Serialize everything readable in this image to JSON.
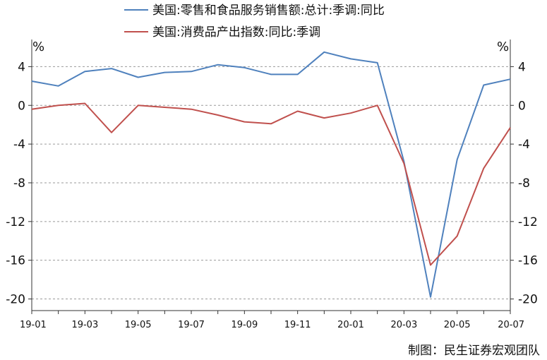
{
  "chart_data": {
    "type": "line",
    "x": [
      "19-01",
      "19-02",
      "19-03",
      "19-04",
      "19-05",
      "19-06",
      "19-07",
      "19-08",
      "19-09",
      "19-10",
      "19-11",
      "19-12",
      "20-01",
      "20-02",
      "20-03",
      "20-04",
      "20-05",
      "20-06",
      "20-07"
    ],
    "x_tick_labels": [
      "19-01",
      "19-03",
      "19-05",
      "19-07",
      "19-09",
      "19-11",
      "20-01",
      "20-03",
      "20-05",
      "20-07"
    ],
    "series": [
      {
        "name": "美国:零售和食品服务销售额:总计:季调:同比",
        "color": "#4f81bd",
        "values": [
          2.5,
          2.0,
          3.5,
          3.8,
          2.9,
          3.4,
          3.5,
          4.2,
          3.9,
          3.2,
          3.2,
          5.5,
          4.8,
          4.4,
          -5.8,
          -19.8,
          -5.6,
          2.1,
          2.7
        ]
      },
      {
        "name": "美国:消费品产出指数:同比:季调",
        "color": "#c0504d",
        "values": [
          -0.4,
          0.0,
          0.2,
          -2.8,
          0.0,
          -0.2,
          -0.4,
          -1.0,
          -1.7,
          -1.9,
          -0.6,
          -1.3,
          -0.8,
          0.0,
          -6.0,
          -16.5,
          -13.5,
          -6.5,
          -2.3
        ]
      }
    ],
    "y_ticks": [
      4,
      0,
      -4,
      -8,
      -12,
      -16,
      -20
    ],
    "ylim": [
      -21.2,
      6.8
    ],
    "left_unit": "%",
    "right_unit": "%",
    "grid": true,
    "legend_position": "top",
    "source_note": "制图：民生证券宏观团队"
  }
}
